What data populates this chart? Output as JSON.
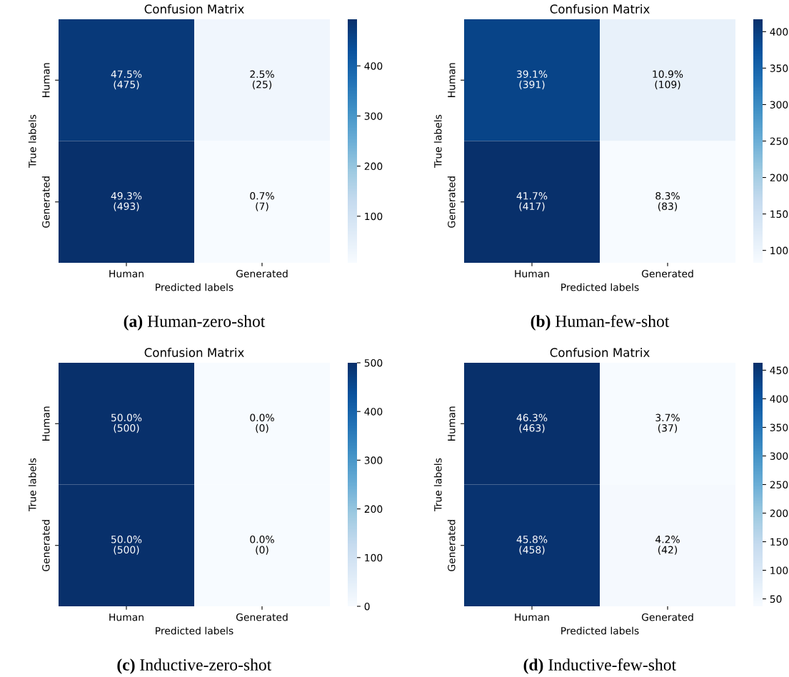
{
  "chart_data": [
    {
      "type": "heatmap",
      "title": "Confusion Matrix",
      "xlabel": "Predicted labels",
      "ylabel": "True labels",
      "categories": [
        "Human",
        "Generated"
      ],
      "y_categories": [
        "Human",
        "Generated"
      ],
      "cells": [
        [
          475,
          25
        ],
        [
          493,
          7
        ]
      ],
      "cell_labels": [
        [
          "47.5%\n(475)",
          "2.5%\n(25)"
        ],
        [
          "49.3%\n(493)",
          "0.7%\n(7)"
        ]
      ],
      "clim": [
        7,
        493
      ],
      "cticks": [
        100,
        200,
        300,
        400
      ],
      "annotations": [
        "(a) Human-zero-shot"
      ]
    },
    {
      "type": "heatmap",
      "title": "Confusion Matrix",
      "xlabel": "Predicted labels",
      "ylabel": "True labels",
      "categories": [
        "Human",
        "Generated"
      ],
      "y_categories": [
        "Human",
        "Generated"
      ],
      "cells": [
        [
          391,
          109
        ],
        [
          417,
          83
        ]
      ],
      "cell_labels": [
        [
          "39.1%\n(391)",
          "10.9%\n(109)"
        ],
        [
          "41.7%\n(417)",
          "8.3%\n(83)"
        ]
      ],
      "clim": [
        83,
        417
      ],
      "cticks": [
        100,
        150,
        200,
        250,
        300,
        350,
        400
      ],
      "annotations": [
        "(b) Human-few-shot"
      ]
    },
    {
      "type": "heatmap",
      "title": "Confusion Matrix",
      "xlabel": "Predicted labels",
      "ylabel": "True labels",
      "categories": [
        "Human",
        "Generated"
      ],
      "y_categories": [
        "Human",
        "Generated"
      ],
      "cells": [
        [
          500,
          0
        ],
        [
          500,
          0
        ]
      ],
      "cell_labels": [
        [
          "50.0%\n(500)",
          "0.0%\n(0)"
        ],
        [
          "50.0%\n(500)",
          "0.0%\n(0)"
        ]
      ],
      "clim": [
        0,
        500
      ],
      "cticks": [
        0,
        100,
        200,
        300,
        400,
        500
      ],
      "annotations": [
        "(c) Inductive-zero-shot"
      ]
    },
    {
      "type": "heatmap",
      "title": "Confusion Matrix",
      "xlabel": "Predicted labels",
      "ylabel": "True labels",
      "categories": [
        "Human",
        "Generated"
      ],
      "y_categories": [
        "Human",
        "Generated"
      ],
      "cells": [
        [
          463,
          37
        ],
        [
          458,
          42
        ]
      ],
      "cell_labels": [
        [
          "46.3%\n(463)",
          "3.7%\n(37)"
        ],
        [
          "45.8%\n(458)",
          "4.2%\n(42)"
        ]
      ],
      "clim": [
        37,
        463
      ],
      "cticks": [
        50,
        100,
        150,
        200,
        250,
        300,
        350,
        400,
        450
      ],
      "annotations": [
        "(d) Inductive-few-shot"
      ]
    }
  ]
}
